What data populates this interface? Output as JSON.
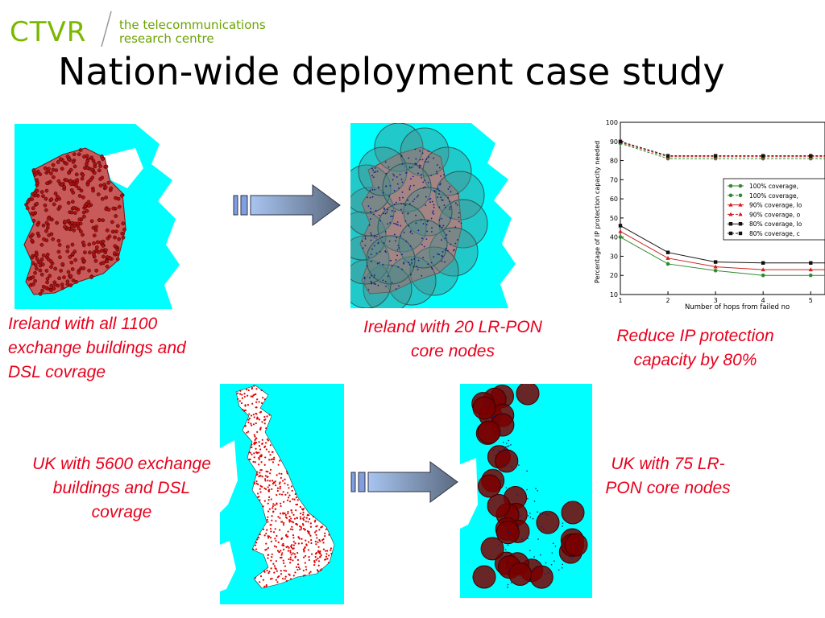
{
  "logo": {
    "name": "CTVR",
    "line1": "the telecommunications",
    "line2": "research centre"
  },
  "title": "Nation-wide deployment case study",
  "captions": {
    "ireland_all": "Ireland with all 1100 exchange buildings and DSL covrage",
    "ireland_lrpon": "Ireland with 20 LR-PON core nodes",
    "reduce_ip": "Reduce IP protection capacity by 80%",
    "uk_all": "UK with 5600 exchange buildings and DSL covrage",
    "uk_lrpon": "UK with 75 LR-PON core nodes"
  },
  "chart_data": {
    "type": "line",
    "ylabel": "Percentage of IP protection capacity needed",
    "xlabel": "Number of hops from failed no",
    "x": [
      1,
      2,
      3,
      4,
      5
    ],
    "xlim": [
      1,
      5.3
    ],
    "ylim": [
      10,
      100
    ],
    "xticks": [
      1,
      2,
      3,
      4,
      5
    ],
    "yticks": [
      10,
      20,
      30,
      40,
      50,
      60,
      70,
      80,
      90,
      100
    ],
    "legend": "right",
    "series": [
      {
        "name": "100% coverage, ",
        "color": "#2e8b2e",
        "marker": "circle",
        "dashed": false,
        "values": [
          40,
          26,
          22.5,
          20,
          20
        ]
      },
      {
        "name": "100% coverage, ",
        "color": "#2e8b2e",
        "marker": "circle",
        "dashed": true,
        "values": [
          89,
          81,
          81,
          81,
          81
        ]
      },
      {
        "name": "90% coverage, lo",
        "color": "#d02020",
        "marker": "triangle",
        "dashed": false,
        "values": [
          43,
          29,
          24.5,
          23,
          23
        ]
      },
      {
        "name": "90% coverage, o",
        "color": "#d02020",
        "marker": "triangle",
        "dashed": true,
        "values": [
          89.5,
          82,
          82,
          82,
          82
        ]
      },
      {
        "name": "80% coverage, lo",
        "color": "#111111",
        "marker": "square",
        "dashed": false,
        "values": [
          46,
          32,
          27,
          26.5,
          26.5
        ]
      },
      {
        "name": "80% coverage, c",
        "color": "#111111",
        "marker": "square",
        "dashed": true,
        "values": [
          90,
          82.5,
          82.5,
          82.5,
          82.5
        ]
      }
    ]
  },
  "colors": {
    "sea": "#00ffff",
    "land": "#ffffff",
    "caption": "#e8001c",
    "logo": "#7ab800"
  }
}
